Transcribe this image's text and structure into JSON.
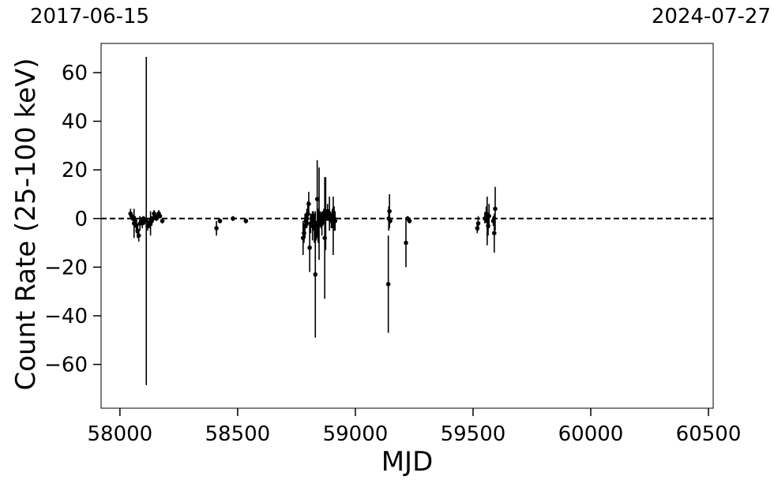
{
  "top_labels": {
    "start_date": "2017-06-15",
    "end_date": "2024-07-27"
  },
  "chart_data": {
    "type": "scatter",
    "title": "",
    "xlabel": "MJD",
    "ylabel": "Count Rate (25-100 keV)",
    "xlim": [
      57920,
      60520
    ],
    "ylim": [
      -78,
      72
    ],
    "xticks": [
      58000,
      58500,
      59000,
      59500,
      60000,
      60500
    ],
    "xtick_labels": [
      "58000",
      "58500",
      "59000",
      "59500",
      "60000",
      "60500"
    ],
    "yticks": [
      -60,
      -40,
      -20,
      0,
      20,
      40,
      60
    ],
    "ytick_labels": [
      "−60",
      "−40",
      "−20",
      "0",
      "20",
      "40",
      "60"
    ],
    "reference_line": {
      "y": 0,
      "style": "dashed",
      "color": "#000000"
    },
    "grid": false,
    "marker_color": "#000000",
    "series": [
      {
        "x": [
          58045,
          58050,
          58055,
          58060,
          58065,
          58070,
          58075,
          58080,
          58085,
          58090,
          58095,
          58100,
          58105,
          58112,
          58118,
          58125,
          58130,
          58135,
          58140,
          58145,
          58150,
          58155,
          58160,
          58165,
          58170,
          58180,
          58410,
          58425,
          58480,
          58535,
          58778,
          58782,
          58786,
          58790,
          58794,
          58798,
          58802,
          58806,
          58810,
          58814,
          58818,
          58822,
          58826,
          58830,
          58834,
          58838,
          58842,
          58846,
          58850,
          58854,
          58858,
          58862,
          58866,
          58870,
          58874,
          58878,
          58882,
          58886,
          58890,
          58894,
          58898,
          58902,
          58906,
          58910,
          58914,
          59140,
          59142,
          59145,
          59148,
          59215,
          59222,
          59230,
          59518,
          59522,
          59550,
          59556,
          59560,
          59564,
          59568,
          59586,
          59590,
          59594
        ],
        "y": [
          2,
          1,
          0,
          -2,
          -1,
          -3,
          -5,
          -7,
          -2,
          -1,
          -2,
          0,
          -1,
          -1,
          -3,
          -2,
          -2,
          -1,
          0,
          2,
          1,
          0,
          1,
          2,
          1,
          -1,
          -4,
          -1,
          0,
          -1,
          -8,
          -6,
          -3,
          -1,
          0,
          2,
          6,
          -12,
          -2,
          0,
          -3,
          -1,
          -4,
          -23,
          -5,
          8,
          -3,
          2,
          0,
          -1,
          -2,
          0,
          1,
          -8,
          2,
          1,
          3,
          0,
          2,
          1,
          -1,
          0,
          -3,
          0,
          -1,
          -27,
          0,
          3,
          -1,
          -10,
          0,
          -1,
          -4,
          -2,
          0,
          2,
          -1,
          -3,
          1,
          -1,
          -6,
          4
        ],
        "yerr": [
          2,
          1.5,
          1,
          6,
          2,
          3,
          3,
          2.5,
          3,
          1.5,
          2,
          1,
          1.5,
          67.5,
          2,
          2,
          5,
          2,
          1,
          1.5,
          1,
          1,
          1,
          1.5,
          1,
          1,
          3,
          1,
          1,
          1,
          7,
          4,
          5,
          3,
          4,
          5,
          5,
          10,
          4,
          2,
          6,
          4,
          6,
          26,
          4,
          16,
          7,
          19,
          3,
          3,
          5,
          3,
          3,
          25,
          15,
          2,
          3,
          1,
          7,
          2,
          3,
          4,
          12,
          5,
          4,
          20,
          5,
          7,
          1,
          10,
          1,
          1,
          2,
          3,
          2,
          3,
          10,
          4,
          5,
          2,
          8,
          9
        ]
      }
    ]
  }
}
